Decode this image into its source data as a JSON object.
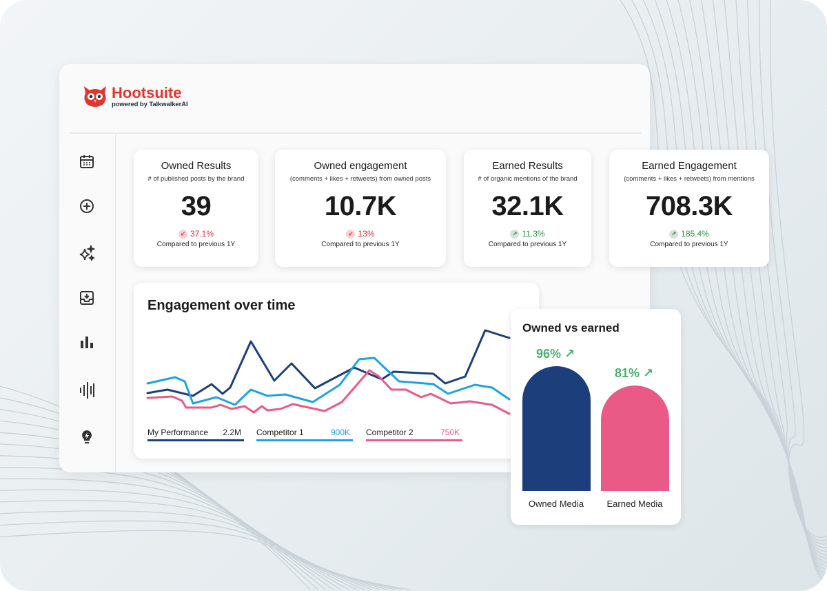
{
  "brand": {
    "name": "Hootsuite",
    "tagline": "powered by TalkwalkerAI",
    "color": "#e3342f"
  },
  "sidebar": {
    "items": [
      {
        "icon": "calendar-icon"
      },
      {
        "icon": "plus-circle-icon"
      },
      {
        "icon": "sparkles-icon"
      },
      {
        "icon": "inbox-icon"
      },
      {
        "icon": "bar-chart-icon"
      },
      {
        "icon": "audio-bars-icon"
      },
      {
        "icon": "lightbulb-icon"
      }
    ]
  },
  "kpis": [
    {
      "title": "Owned Results",
      "subtitle": "# of published posts by the brand",
      "value": "39",
      "change": "37.1%",
      "direction": "down",
      "compare": "Compared to previous 1Y"
    },
    {
      "title": "Owned engagement",
      "subtitle": "(comments + likes + retweets) from owned posts",
      "value": "10.7K",
      "change": "13%",
      "direction": "down",
      "compare": "Compared to previous 1Y"
    },
    {
      "title": "Earned Results",
      "subtitle": "# of organic mentions of the brand",
      "value": "32.1K",
      "change": "11.3%",
      "direction": "up",
      "compare": "Compared to previous 1Y"
    },
    {
      "title": "Earned Engagement",
      "subtitle": "(comments + likes + retweets) from mentions",
      "value": "708.3K",
      "change": "185.4%",
      "direction": "up",
      "compare": "Compared to previous 1Y"
    }
  ],
  "chart_data": [
    {
      "type": "line",
      "title": "Engagement over time",
      "grid": false,
      "legend": "bottom",
      "series": [
        {
          "name": "My Performance",
          "total": "2.2M",
          "color": "#1c3f7c",
          "points": [
            [
              0,
              30
            ],
            [
              29,
              35
            ],
            [
              66,
              26
            ],
            [
              93,
              43
            ],
            [
              109,
              29
            ],
            [
              120,
              38
            ],
            [
              150,
              105
            ],
            [
              184,
              48
            ],
            [
              209,
              73
            ],
            [
              243,
              37
            ],
            [
              300,
              67
            ],
            [
              340,
              50
            ],
            [
              357,
              61
            ],
            [
              415,
              58
            ],
            [
              432,
              44
            ],
            [
              461,
              54
            ],
            [
              490,
              121
            ],
            [
              525,
              110
            ]
          ]
        },
        {
          "name": "Competitor 1",
          "total": "900K",
          "color": "#1ea3e0",
          "points": [
            [
              0,
              44
            ],
            [
              40,
              53
            ],
            [
              54,
              47
            ],
            [
              66,
              15
            ],
            [
              100,
              24
            ],
            [
              127,
              13
            ],
            [
              150,
              35
            ],
            [
              174,
              26
            ],
            [
              200,
              28
            ],
            [
              240,
              17
            ],
            [
              279,
              42
            ],
            [
              307,
              79
            ],
            [
              329,
              81
            ],
            [
              365,
              47
            ],
            [
              415,
              43
            ],
            [
              436,
              29
            ],
            [
              475,
              42
            ],
            [
              500,
              38
            ],
            [
              525,
              21
            ]
          ]
        },
        {
          "name": "Competitor 2",
          "total": "750K",
          "color": "#ea5a87",
          "points": [
            [
              0,
              23
            ],
            [
              36,
              25
            ],
            [
              50,
              19
            ],
            [
              56,
              9
            ],
            [
              93,
              9
            ],
            [
              106,
              13
            ],
            [
              122,
              7
            ],
            [
              141,
              11
            ],
            [
              154,
              2
            ],
            [
              166,
              11
            ],
            [
              174,
              5
            ],
            [
              193,
              7
            ],
            [
              211,
              14
            ],
            [
              257,
              4
            ],
            [
              282,
              17
            ],
            [
              322,
              63
            ],
            [
              336,
              54
            ],
            [
              354,
              35
            ],
            [
              375,
              35
            ],
            [
              397,
              24
            ],
            [
              411,
              29
            ],
            [
              440,
              15
            ],
            [
              468,
              18
            ],
            [
              500,
              13
            ],
            [
              525,
              0
            ]
          ]
        }
      ]
    },
    {
      "type": "bar",
      "title": "Owned vs earned",
      "categories": [
        "Owned Media",
        "Earned Media"
      ],
      "values": [
        96,
        81
      ],
      "labels": [
        "96%",
        "81%"
      ],
      "colors": [
        "#1c3f7c",
        "#ea5a87"
      ],
      "trend": "up",
      "trend_color": "#4caf6e"
    }
  ]
}
